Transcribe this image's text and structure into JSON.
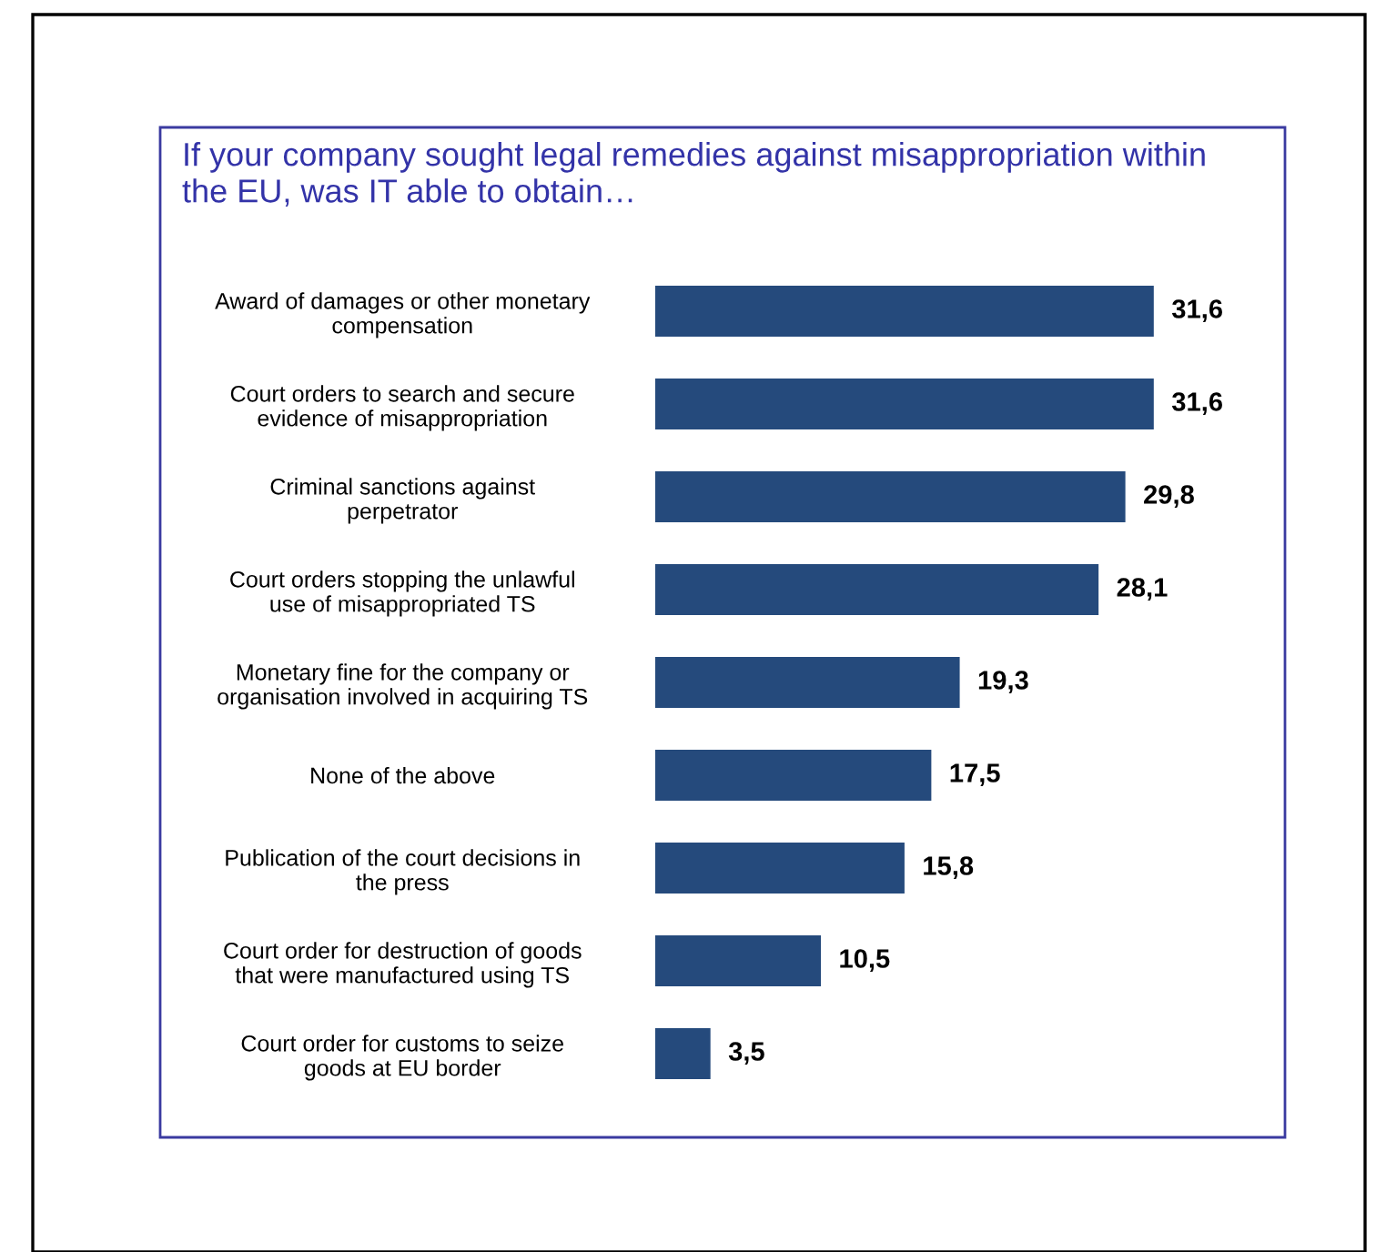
{
  "chart_data": {
    "type": "bar",
    "orientation": "horizontal",
    "title": "If your company sought legal remedies against misappropriation within\nthe EU, was IT able to obtain…",
    "categories": [
      "Award of damages or other monetary\ncompensation",
      "Court orders to search and secure\nevidence of misappropriation",
      "Criminal sanctions against\nperpetrator",
      "Court orders stopping the unlawful\nuse of misappropriated TS",
      "Monetary fine for the company or\norganisation involved in acquiring TS",
      "None of the above",
      "Publication of the court decisions in\nthe press",
      "Court order for destruction of goods\nthat were manufactured using TS",
      "Court order for customs to seize\ngoods at EU border"
    ],
    "values": [
      31.6,
      31.6,
      29.8,
      28.1,
      19.3,
      17.5,
      15.8,
      10.5,
      3.5
    ],
    "value_labels": [
      "31,6",
      "31,6",
      "29,8",
      "28,1",
      "19,3",
      "17,5",
      "15,8",
      "10,5",
      "3,5"
    ],
    "color": "#254a7c",
    "grid": false,
    "legend": false
  }
}
